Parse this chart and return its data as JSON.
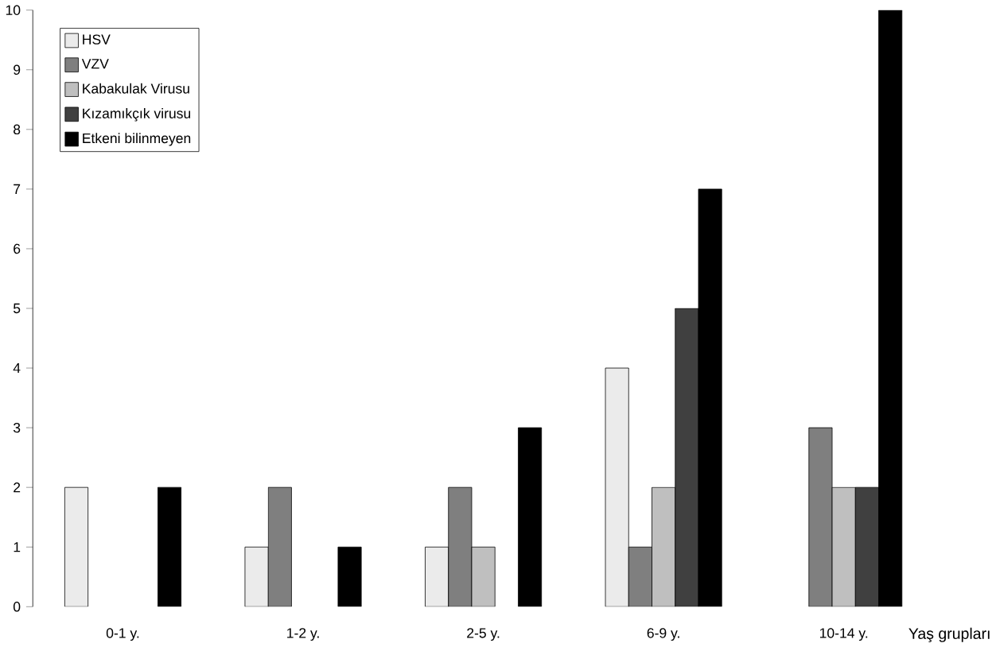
{
  "chart_data": {
    "type": "bar",
    "xlabel": "Yaş grupları",
    "categories": [
      "0-1 y.",
      "1-2 y.",
      "2-5 y.",
      "6-9 y.",
      "10-14 y."
    ],
    "series": [
      {
        "name": "HSV",
        "color": "#ebebeb",
        "values": [
          2,
          1,
          1,
          4,
          0
        ]
      },
      {
        "name": "VZV",
        "color": "#7f7f7f",
        "values": [
          0,
          2,
          2,
          1,
          3
        ]
      },
      {
        "name": "Kabakulak Virusu",
        "color": "#bfbfbf",
        "values": [
          0,
          0,
          1,
          2,
          2
        ]
      },
      {
        "name": "Kızamıkçık virusu",
        "color": "#404040",
        "values": [
          0,
          0,
          0,
          5,
          2
        ]
      },
      {
        "name": "Etkeni bilinmeyen",
        "color": "#000000",
        "values": [
          2,
          1,
          3,
          7,
          10
        ]
      }
    ],
    "ylim": [
      0,
      10
    ],
    "yticks": [
      0,
      1,
      2,
      3,
      4,
      5,
      6,
      7,
      8,
      9,
      10
    ],
    "legend": "top left"
  }
}
